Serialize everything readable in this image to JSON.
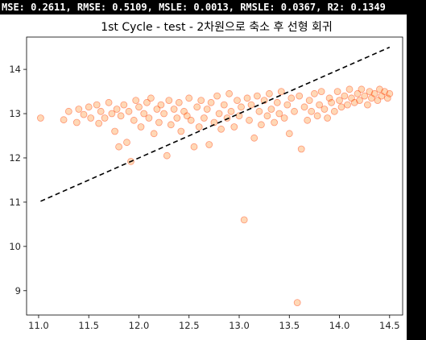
{
  "metrics_text": "MSE: 0.2611, RMSE: 0.5109, MSLE: 0.0013, RMSLE: 0.0367, R2: 0.1349",
  "chart_data": {
    "type": "scatter",
    "title": "1st Cycle - test - 2차원으로 축소 후 선형 회귀",
    "xlabel": "",
    "ylabel": "",
    "xlim": [
      10.88,
      14.63
    ],
    "ylim": [
      8.45,
      14.73
    ],
    "xticks": [
      11.0,
      11.5,
      12.0,
      12.5,
      13.0,
      13.5,
      14.0,
      14.5
    ],
    "yticks": [
      9,
      10,
      11,
      12,
      13,
      14
    ],
    "grid": false,
    "marker_color": "#ff7f0e",
    "marker_edge": "#ff3300",
    "reference_line": {
      "style": "dashed",
      "color": "#000000",
      "x": [
        11.02,
        14.5
      ],
      "y": [
        11.02,
        14.5
      ]
    },
    "series": [
      {
        "points": [
          [
            11.02,
            12.9
          ],
          [
            11.25,
            12.86
          ],
          [
            11.3,
            13.05
          ],
          [
            11.38,
            12.8
          ],
          [
            11.4,
            13.1
          ],
          [
            11.45,
            12.98
          ],
          [
            11.5,
            13.15
          ],
          [
            11.52,
            12.9
          ],
          [
            11.58,
            13.2
          ],
          [
            11.6,
            12.78
          ],
          [
            11.62,
            13.05
          ],
          [
            11.66,
            12.9
          ],
          [
            11.7,
            13.25
          ],
          [
            11.73,
            13.0
          ],
          [
            11.76,
            12.6
          ],
          [
            11.78,
            13.1
          ],
          [
            11.8,
            12.25
          ],
          [
            11.82,
            12.95
          ],
          [
            11.85,
            13.2
          ],
          [
            11.88,
            12.35
          ],
          [
            11.9,
            13.05
          ],
          [
            11.92,
            11.92
          ],
          [
            11.95,
            12.85
          ],
          [
            11.97,
            13.3
          ],
          [
            12.0,
            13.15
          ],
          [
            12.02,
            12.7
          ],
          [
            12.05,
            13.0
          ],
          [
            12.08,
            13.25
          ],
          [
            12.1,
            12.9
          ],
          [
            12.12,
            13.35
          ],
          [
            12.15,
            12.55
          ],
          [
            12.18,
            13.1
          ],
          [
            12.2,
            12.8
          ],
          [
            12.22,
            13.2
          ],
          [
            12.25,
            13.0
          ],
          [
            12.28,
            12.05
          ],
          [
            12.3,
            13.3
          ],
          [
            12.32,
            12.75
          ],
          [
            12.35,
            13.1
          ],
          [
            12.38,
            12.9
          ],
          [
            12.4,
            13.25
          ],
          [
            12.42,
            12.6
          ],
          [
            12.45,
            13.05
          ],
          [
            12.48,
            12.95
          ],
          [
            12.5,
            13.35
          ],
          [
            12.52,
            12.85
          ],
          [
            12.55,
            12.25
          ],
          [
            12.58,
            13.15
          ],
          [
            12.6,
            12.7
          ],
          [
            12.62,
            13.3
          ],
          [
            12.65,
            12.9
          ],
          [
            12.68,
            13.1
          ],
          [
            12.7,
            12.3
          ],
          [
            12.72,
            13.25
          ],
          [
            12.75,
            12.8
          ],
          [
            12.78,
            13.4
          ],
          [
            12.8,
            13.0
          ],
          [
            12.82,
            12.65
          ],
          [
            12.85,
            13.2
          ],
          [
            12.88,
            12.9
          ],
          [
            12.9,
            13.45
          ],
          [
            12.92,
            13.05
          ],
          [
            12.95,
            12.7
          ],
          [
            12.98,
            13.3
          ],
          [
            13.0,
            12.95
          ],
          [
            13.02,
            13.15
          ],
          [
            13.05,
            10.6
          ],
          [
            13.08,
            13.35
          ],
          [
            13.1,
            12.85
          ],
          [
            13.12,
            13.2
          ],
          [
            13.15,
            12.45
          ],
          [
            13.18,
            13.4
          ],
          [
            13.2,
            13.05
          ],
          [
            13.22,
            12.75
          ],
          [
            13.25,
            13.3
          ],
          [
            13.28,
            12.95
          ],
          [
            13.3,
            13.45
          ],
          [
            13.32,
            13.1
          ],
          [
            13.35,
            12.8
          ],
          [
            13.38,
            13.25
          ],
          [
            13.4,
            13.0
          ],
          [
            13.42,
            13.5
          ],
          [
            13.45,
            12.9
          ],
          [
            13.48,
            13.2
          ],
          [
            13.5,
            12.55
          ],
          [
            13.52,
            13.35
          ],
          [
            13.55,
            13.05
          ],
          [
            13.58,
            8.73
          ],
          [
            13.6,
            13.4
          ],
          [
            13.62,
            12.2
          ],
          [
            13.65,
            13.15
          ],
          [
            13.68,
            12.85
          ],
          [
            13.7,
            13.3
          ],
          [
            13.72,
            13.05
          ],
          [
            13.75,
            13.45
          ],
          [
            13.78,
            12.95
          ],
          [
            13.8,
            13.2
          ],
          [
            13.82,
            13.5
          ],
          [
            13.85,
            13.1
          ],
          [
            13.88,
            12.9
          ],
          [
            13.9,
            13.35
          ],
          [
            13.92,
            13.25
          ],
          [
            13.95,
            13.05
          ],
          [
            13.98,
            13.5
          ],
          [
            14.0,
            13.3
          ],
          [
            14.02,
            13.15
          ],
          [
            14.05,
            13.4
          ],
          [
            14.08,
            13.2
          ],
          [
            14.1,
            13.55
          ],
          [
            14.12,
            13.35
          ],
          [
            14.15,
            13.25
          ],
          [
            14.18,
            13.45
          ],
          [
            14.2,
            13.3
          ],
          [
            14.22,
            13.55
          ],
          [
            14.25,
            13.4
          ],
          [
            14.28,
            13.2
          ],
          [
            14.3,
            13.5
          ],
          [
            14.32,
            13.35
          ],
          [
            14.35,
            13.45
          ],
          [
            14.38,
            13.3
          ],
          [
            14.4,
            13.55
          ],
          [
            14.42,
            13.4
          ],
          [
            14.45,
            13.5
          ],
          [
            14.48,
            13.35
          ],
          [
            14.5,
            13.45
          ]
        ]
      }
    ]
  }
}
